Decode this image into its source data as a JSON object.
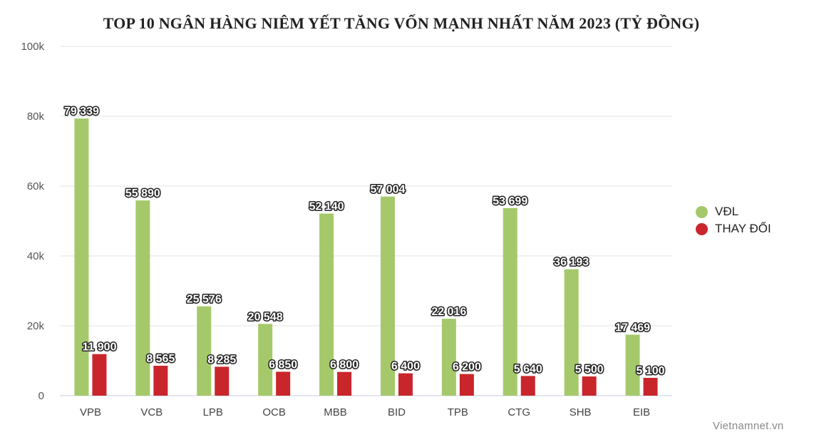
{
  "chart_data": {
    "type": "bar",
    "title": "TOP 10 NGÂN HÀNG NIÊM YẾT TĂNG VỐN MẠNH NHẤT NĂM 2023 (TỶ ĐỒNG)",
    "categories": [
      "VPB",
      "VCB",
      "LPB",
      "OCB",
      "MBB",
      "BID",
      "TPB",
      "CTG",
      "SHB",
      "EIB"
    ],
    "series": [
      {
        "name": "VĐL",
        "color": "#a5c96a",
        "values": [
          79339,
          55890,
          25576,
          20548,
          52140,
          57004,
          22016,
          53699,
          36193,
          17469
        ],
        "labels": [
          "79 339",
          "55 890",
          "25 576",
          "20 548",
          "52 140",
          "57 004",
          "22 016",
          "53 699",
          "36 193",
          "17 469"
        ]
      },
      {
        "name": "THAY ĐỔI",
        "color": "#c9262b",
        "values": [
          11900,
          8565,
          8285,
          6850,
          6800,
          6400,
          6200,
          5640,
          5500,
          5100
        ],
        "labels": [
          "11 900",
          "8 565",
          "8 285",
          "6 850",
          "6 800",
          "6 400",
          "6 200",
          "5 640",
          "5 500",
          "5 100"
        ]
      }
    ],
    "ylim": [
      0,
      100000
    ],
    "yticks": [
      {
        "value": 0,
        "label": "0"
      },
      {
        "value": 20000,
        "label": "20k"
      },
      {
        "value": 40000,
        "label": "40k"
      },
      {
        "value": 60000,
        "label": "60k"
      },
      {
        "value": 80000,
        "label": "80k"
      },
      {
        "value": 100000,
        "label": "100k"
      }
    ],
    "grid": true,
    "legend_position": "right",
    "xlabel": "",
    "ylabel": ""
  },
  "watermark": "Vietnamnet.vn"
}
